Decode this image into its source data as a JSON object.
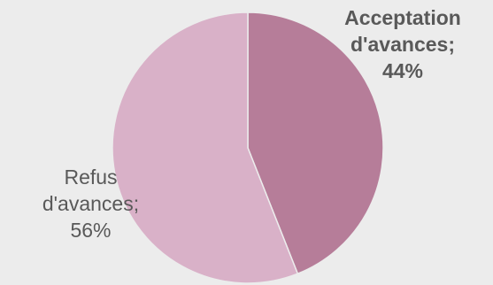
{
  "chart_data": {
    "type": "pie",
    "title": "",
    "slices": [
      {
        "name": "Acceptation d'avances",
        "value": 44,
        "label_lines": [
          "Acceptation",
          "d'avances;",
          "44%"
        ],
        "color": "#b67d99"
      },
      {
        "name": "Refus d'avances",
        "value": 56,
        "label_lines": [
          "Refus",
          "d'avances;",
          "56%"
        ],
        "color": "#d9b1c8"
      }
    ],
    "start_angle_deg": 0,
    "direction": "clockwise",
    "legend": "none",
    "background": "#ececec"
  }
}
